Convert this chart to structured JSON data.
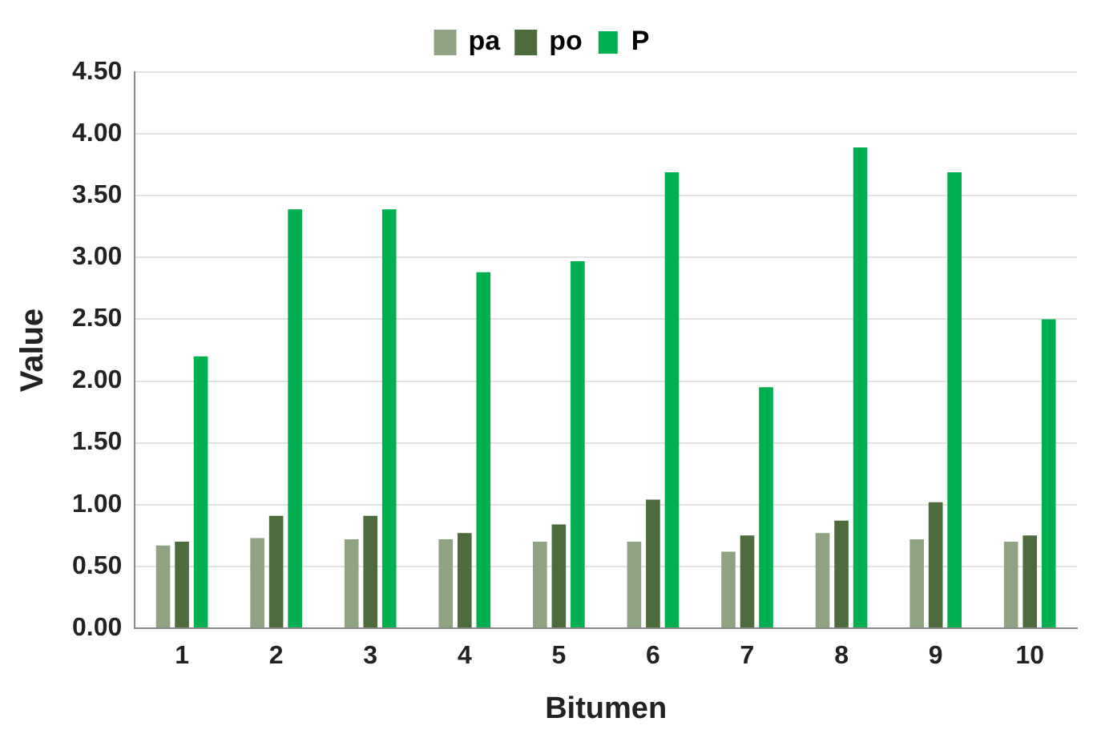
{
  "chart_data": {
    "type": "bar",
    "xlabel": "Bitumen",
    "ylabel": "Value",
    "categories": [
      "1",
      "2",
      "3",
      "4",
      "5",
      "6",
      "7",
      "8",
      "9",
      "10"
    ],
    "series": [
      {
        "name": "pa",
        "color": "#8fa383",
        "values": [
          0.67,
          0.73,
          0.72,
          0.72,
          0.7,
          0.7,
          0.62,
          0.77,
          0.72,
          0.7
        ]
      },
      {
        "name": "po",
        "color": "#4e6b3c",
        "values": [
          0.7,
          0.91,
          0.91,
          0.77,
          0.84,
          1.04,
          0.75,
          0.87,
          1.02,
          0.75
        ]
      },
      {
        "name": "P",
        "color": "#00b050",
        "values": [
          2.2,
          3.39,
          3.39,
          2.88,
          2.97,
          3.69,
          1.95,
          3.89,
          3.69,
          2.5
        ]
      }
    ],
    "ylim": [
      0,
      4.5
    ],
    "yticks": [
      {
        "value": 0,
        "label": "0.00"
      },
      {
        "value": 0.5,
        "label": "0.50"
      },
      {
        "value": 1,
        "label": "1.00"
      },
      {
        "value": 1.5,
        "label": "1.50"
      },
      {
        "value": 2,
        "label": "2.00"
      },
      {
        "value": 2.5,
        "label": "2.50"
      },
      {
        "value": 3,
        "label": "3.00"
      },
      {
        "value": 3.5,
        "label": "3.50"
      },
      {
        "value": 4,
        "label": "4.00"
      },
      {
        "value": 4.5,
        "label": "4.50"
      }
    ],
    "grid": "y",
    "legend": "top"
  }
}
